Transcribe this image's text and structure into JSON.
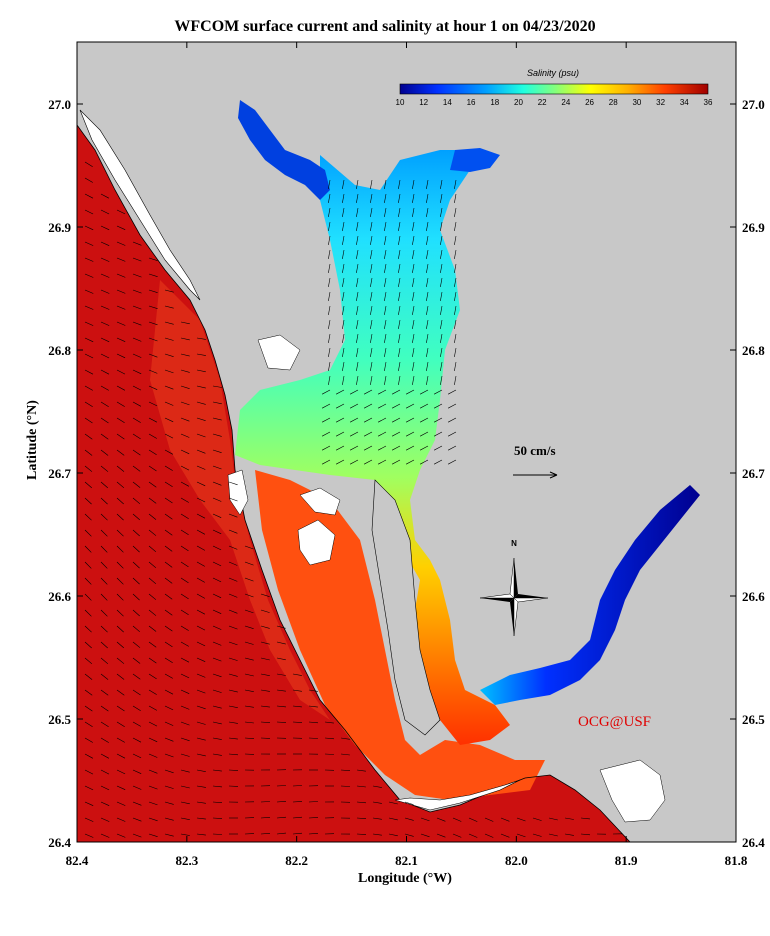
{
  "title": "WFCOM surface current and salinity at hour 1 on 04/23/2020",
  "x_axis": {
    "label": "Longitude (°W)",
    "range": [
      82.4,
      81.8
    ],
    "ticks": [
      "82.4",
      "82.3",
      "82.2",
      "82.1",
      "82.0",
      "81.9",
      "81.8"
    ]
  },
  "y_axis": {
    "label": "Latitude (°N)",
    "range": [
      26.4,
      27.05
    ],
    "ticks": [
      "26.4",
      "26.5",
      "26.6",
      "26.7",
      "26.8",
      "26.9",
      "27.0"
    ]
  },
  "colorbar": {
    "title": "Salinity (psu)",
    "ticks": [
      "10",
      "12",
      "14",
      "16",
      "18",
      "20",
      "22",
      "24",
      "26",
      "28",
      "30",
      "32",
      "34",
      "36"
    ],
    "colors": [
      "#00008f",
      "#0020ff",
      "#0070ff",
      "#00c0ff",
      "#20ffe0",
      "#80ff80",
      "#c0ff40",
      "#ffff00",
      "#ffc000",
      "#ff8000",
      "#ff4000",
      "#e00000",
      "#b00000"
    ]
  },
  "scale_vector": {
    "label": "50 cm/s"
  },
  "north_label": "N",
  "credit": "OCG@USF",
  "colors": {
    "land": "#c8c8c8",
    "gulf": "#cc1010",
    "gulf_light": "#e03018",
    "credit": "#e00000"
  }
}
